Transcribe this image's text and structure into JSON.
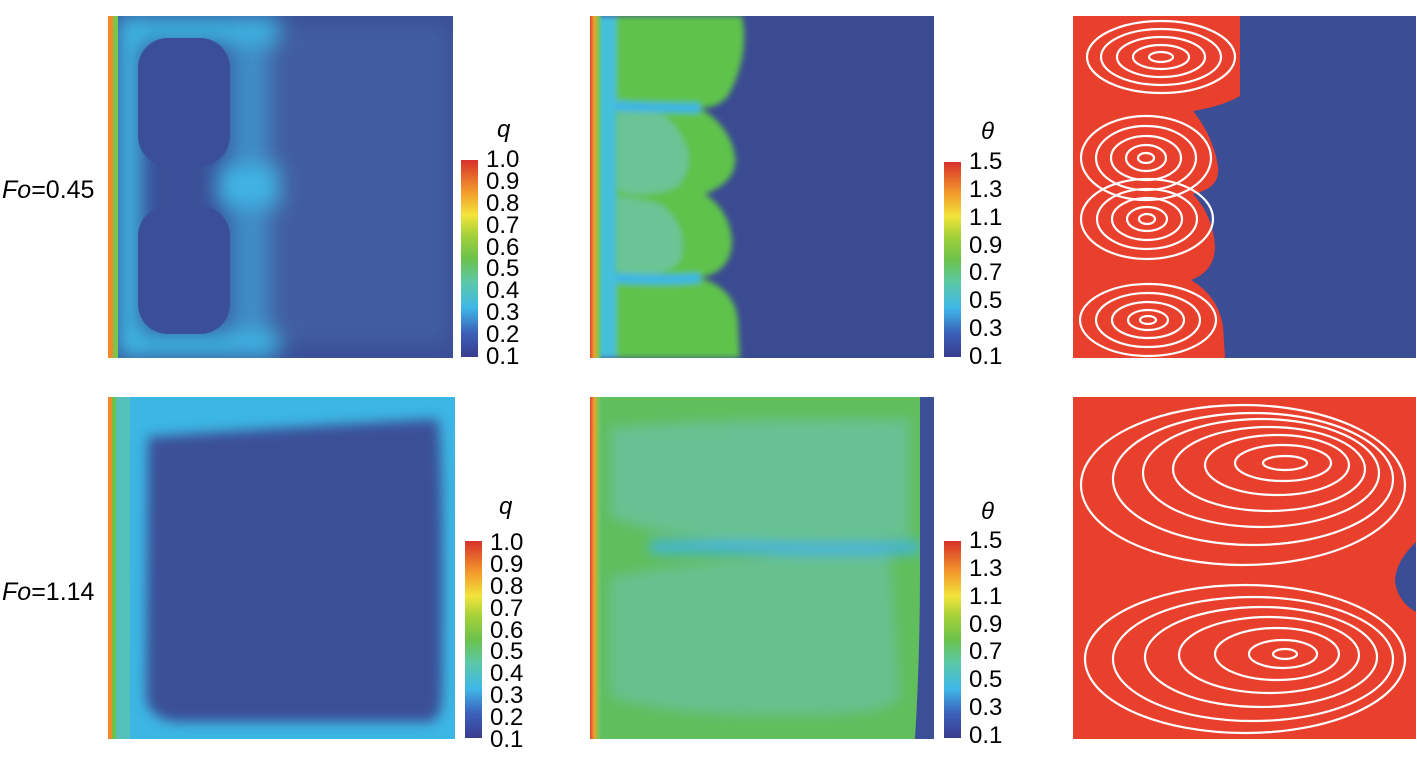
{
  "rows": [
    {
      "fo_symbol": "Fo",
      "fo_value": "=0.45",
      "q_title": "q",
      "q_ticks": [
        "1.0",
        "0.9",
        "0.8",
        "0.7",
        "0.6",
        "0.5",
        "0.4",
        "0.3",
        "0.2",
        "0.1"
      ],
      "theta_title": "θ",
      "theta_ticks": [
        "1.5",
        "1.3",
        "1.1",
        "0.9",
        "0.7",
        "0.5",
        "0.3",
        "0.1"
      ]
    },
    {
      "fo_symbol": "Fo",
      "fo_value": "=1.14",
      "q_title": "q",
      "q_ticks": [
        "1.0",
        "0.9",
        "0.8",
        "0.7",
        "0.6",
        "0.5",
        "0.4",
        "0.3",
        "0.2",
        "0.1"
      ],
      "theta_title": "θ",
      "theta_ticks": [
        "1.5",
        "1.3",
        "1.1",
        "0.9",
        "0.7",
        "0.5",
        "0.3",
        "0.1"
      ]
    }
  ],
  "colors": {
    "low": "#3b4e96",
    "cyan": "#3cc3e6",
    "green": "#5ec23f",
    "teal": "#69c0a6",
    "red": "#e8412e",
    "streamline": "#ffffff"
  }
}
